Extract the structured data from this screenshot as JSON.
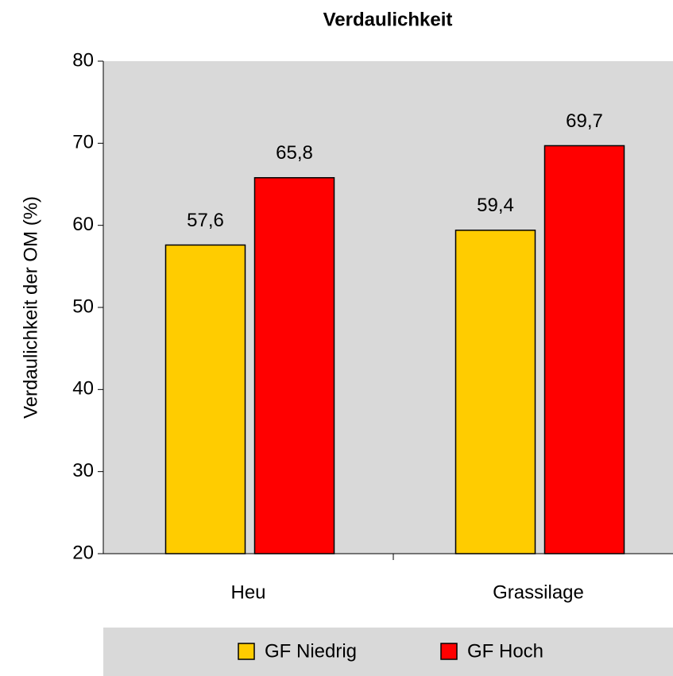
{
  "chart_data": {
    "type": "bar",
    "title": "Verdaulichkeit",
    "y_label": "Verdaulichkeit der OM (%)",
    "categories": [
      "Heu",
      "Grassilage"
    ],
    "series": [
      {
        "name": "GF Niedrig",
        "color": "#ffcc00",
        "values": [
          57.6,
          59.4
        ],
        "value_labels": [
          "57,6",
          "59,4"
        ]
      },
      {
        "name": "GF Hoch",
        "color": "#ff0000",
        "values": [
          65.8,
          69.7
        ],
        "value_labels": [
          "65,8",
          "69,7"
        ]
      }
    ],
    "ylim": [
      20,
      80
    ],
    "yticks": [
      20,
      30,
      40,
      50,
      60,
      70,
      80
    ],
    "grid": false,
    "legend": "bottom"
  }
}
